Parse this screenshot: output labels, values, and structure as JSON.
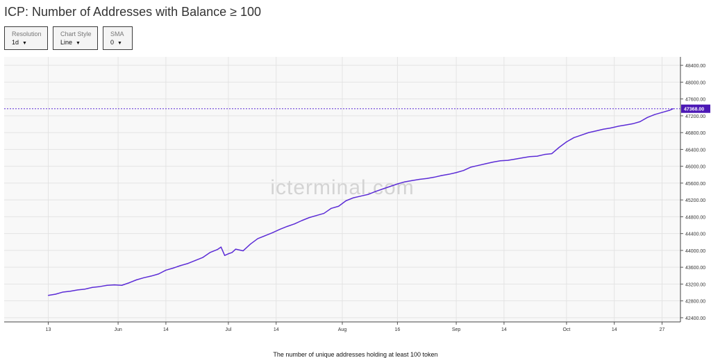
{
  "title": "ICP: Number of Addresses with Balance ≥ 100",
  "controls": [
    {
      "label": "Resolution",
      "value": "1d"
    },
    {
      "label": "Chart Style",
      "value": "Line"
    },
    {
      "label": "SMA",
      "value": "0"
    }
  ],
  "watermark": "icterminal.com",
  "footnote": "The number of unique addresses holding at least 100 token",
  "colors": {
    "line": "#5b2bd6",
    "label_bg": "#4b17b5",
    "grid": "#e3e3e3",
    "plot_bg": "#f8f8f8"
  },
  "chart_data": {
    "type": "line",
    "title": "ICP: Number of Addresses with Balance ≥ 100",
    "xlabel": "",
    "ylabel": "",
    "x_range": [
      "2023-05-01",
      "2023-11-01"
    ],
    "ylim": [
      42300,
      48600
    ],
    "grid": true,
    "y_ticks": [
      "42400.00",
      "42800.00",
      "43200.00",
      "43600.00",
      "44000.00",
      "44400.00",
      "44800.00",
      "45200.00",
      "45600.00",
      "46000.00",
      "46400.00",
      "46800.00",
      "47200.00",
      "47600.00",
      "48000.00",
      "48400.00"
    ],
    "x_ticks": [
      {
        "date": "2023-05-13",
        "label": "13"
      },
      {
        "date": "2023-06-01",
        "label": "Jun"
      },
      {
        "date": "2023-06-14",
        "label": "14"
      },
      {
        "date": "2023-07-01",
        "label": "Jul"
      },
      {
        "date": "2023-07-14",
        "label": "14"
      },
      {
        "date": "2023-08-01",
        "label": "Aug"
      },
      {
        "date": "2023-08-16",
        "label": "16"
      },
      {
        "date": "2023-09-01",
        "label": "Sep"
      },
      {
        "date": "2023-09-14",
        "label": "14"
      },
      {
        "date": "2023-10-01",
        "label": "Oct"
      },
      {
        "date": "2023-10-14",
        "label": "14"
      },
      {
        "date": "2023-10-27",
        "label": "27"
      }
    ],
    "last_value_label": "47368.00",
    "last_value": 47368,
    "series": [
      {
        "x": [
          "2023-05-13",
          "2023-05-15",
          "2023-05-17",
          "2023-05-19",
          "2023-05-21",
          "2023-05-23",
          "2023-05-25",
          "2023-05-27",
          "2023-05-29",
          "2023-05-31",
          "2023-06-02",
          "2023-06-04",
          "2023-06-06",
          "2023-06-08",
          "2023-06-10",
          "2023-06-12",
          "2023-06-14",
          "2023-06-16",
          "2023-06-18",
          "2023-06-20",
          "2023-06-22",
          "2023-06-24",
          "2023-06-26",
          "2023-06-28",
          "2023-06-29",
          "2023-06-30",
          "2023-07-01",
          "2023-07-02",
          "2023-07-03",
          "2023-07-05",
          "2023-07-07",
          "2023-07-09",
          "2023-07-11",
          "2023-07-13",
          "2023-07-15",
          "2023-07-17",
          "2023-07-19",
          "2023-07-21",
          "2023-07-23",
          "2023-07-25",
          "2023-07-27",
          "2023-07-29",
          "2023-07-31",
          "2023-08-02",
          "2023-08-04",
          "2023-08-06",
          "2023-08-08",
          "2023-08-10",
          "2023-08-12",
          "2023-08-14",
          "2023-08-16",
          "2023-08-18",
          "2023-08-20",
          "2023-08-22",
          "2023-08-24",
          "2023-08-26",
          "2023-08-28",
          "2023-08-30",
          "2023-09-01",
          "2023-09-03",
          "2023-09-05",
          "2023-09-07",
          "2023-09-09",
          "2023-09-11",
          "2023-09-13",
          "2023-09-15",
          "2023-09-17",
          "2023-09-19",
          "2023-09-21",
          "2023-09-23",
          "2023-09-25",
          "2023-09-27",
          "2023-09-29",
          "2023-10-01",
          "2023-10-03",
          "2023-10-05",
          "2023-10-07",
          "2023-10-09",
          "2023-10-11",
          "2023-10-13",
          "2023-10-15",
          "2023-10-17",
          "2023-10-19",
          "2023-10-21",
          "2023-10-23",
          "2023-10-25",
          "2023-10-27",
          "2023-10-29",
          "2023-10-30"
        ],
        "y": [
          42930,
          42960,
          43010,
          43030,
          43060,
          43080,
          43120,
          43140,
          43170,
          43180,
          43170,
          43230,
          43300,
          43350,
          43390,
          43440,
          43530,
          43580,
          43640,
          43690,
          43760,
          43830,
          43950,
          44020,
          44080,
          43880,
          43920,
          43950,
          44030,
          43990,
          44150,
          44280,
          44350,
          44420,
          44500,
          44570,
          44630,
          44710,
          44780,
          44830,
          44880,
          45000,
          45050,
          45180,
          45250,
          45290,
          45330,
          45400,
          45460,
          45520,
          45580,
          45630,
          45660,
          45690,
          45710,
          45740,
          45780,
          45810,
          45850,
          45900,
          45980,
          46020,
          46060,
          46100,
          46130,
          46140,
          46170,
          46200,
          46230,
          46240,
          46280,
          46300,
          46450,
          46580,
          46680,
          46740,
          46800,
          46840,
          46880,
          46910,
          46950,
          46980,
          47010,
          47060,
          47160,
          47230,
          47280,
          47330,
          47368
        ]
      }
    ]
  }
}
